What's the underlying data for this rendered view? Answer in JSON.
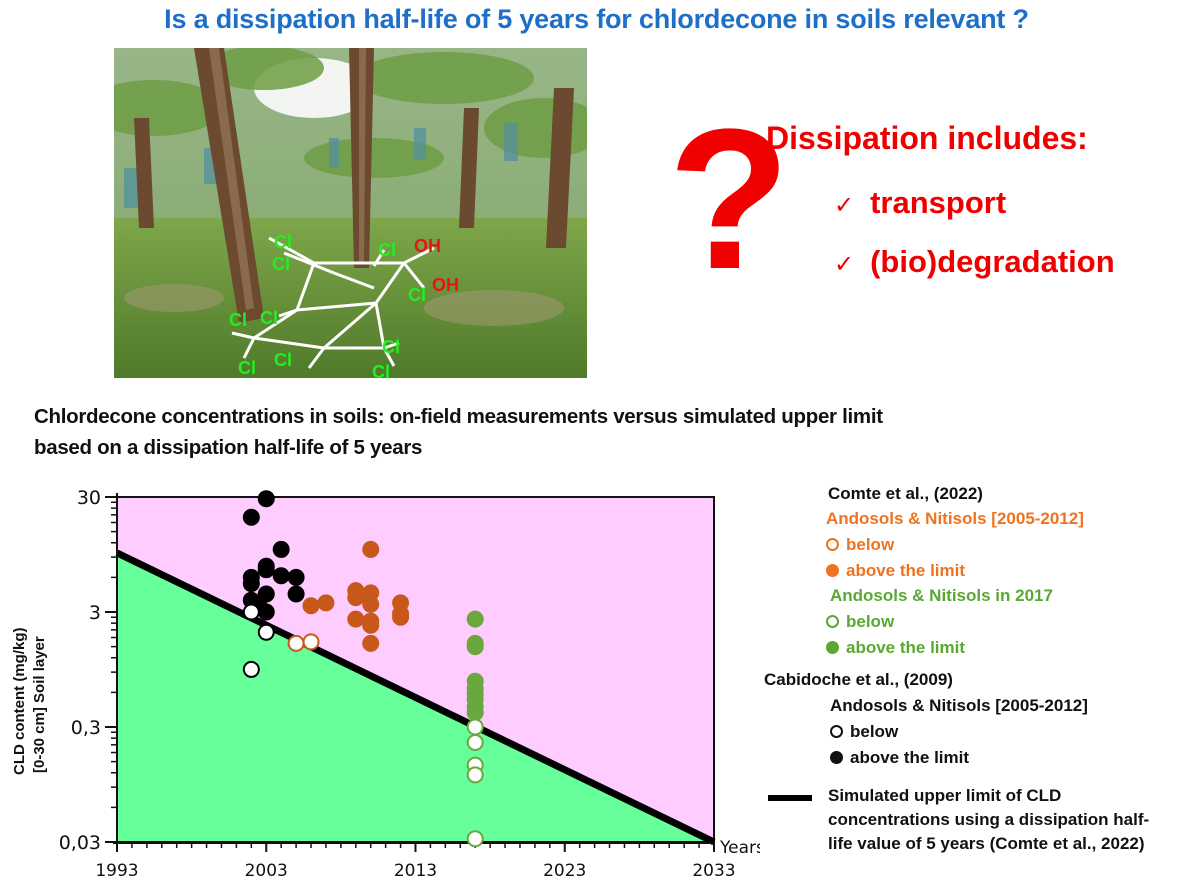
{
  "header": {
    "title": "Is a dissipation half-life of 5 years for chlordecone in soils relevant ?"
  },
  "photo": {
    "description": "Banana plantation with chlordecone molecule overlay",
    "molecule_labels": {
      "chlorine": "Cl",
      "hydroxyl": "OH"
    }
  },
  "question_panel": {
    "symbol": "?",
    "heading": "Dissipation includes:",
    "items": [
      {
        "check": "✓",
        "label": "transport"
      },
      {
        "check": "✓",
        "label": "(bio)degradation"
      }
    ]
  },
  "chart_title": {
    "line1": "Chlordecone concentrations in soils: on-field measurements versus simulated upper limit",
    "line2": "based on a dissipation half-life of 5 years"
  },
  "colors": {
    "title_blue": "#1e6fc8",
    "red": "#ee0000",
    "above_region": "#ffccff",
    "below_region": "#66ff99",
    "orange_points": "#c8581a",
    "green_points": "#6aa73f",
    "black_points": "#000000"
  },
  "legend": {
    "group1_title": "Comte et al., (2022)",
    "group1_sub1": "Andosols & Nitisols [2005-2012]",
    "group1_sub1_below": "below",
    "group1_sub1_above": "above the limit",
    "group1_sub2": "Andosols & Nitisols in 2017",
    "group1_sub2_below": "below",
    "group1_sub2_above": "above the limit",
    "group2_title": "Cabidoche et al., (2009)",
    "group2_sub": "Andosols & Nitisols [2005-2012]",
    "group2_below": "below",
    "group2_above": "above the limit",
    "line_line1": "Simulated upper limit of CLD",
    "line_line2": "concentrations using a dissipation half-",
    "line_line3": "life value of 5 years (Comte et al., 2022)"
  },
  "chart_data": {
    "type": "scatter",
    "title": "Chlordecone concentrations in soils: on-field measurements versus simulated upper limit based on a dissipation half-life of 5 years",
    "xlabel": "Years",
    "ylabel": "CLD content (mg/kg) [0-30 cm] Soil layer",
    "ylabel_line1": "CLD content (mg/kg)",
    "ylabel_line2": "[0-30 cm] Soil layer",
    "yscale": "log",
    "xlim": [
      1993,
      2033
    ],
    "ylim": [
      0.03,
      30
    ],
    "x_ticks": [
      "1993",
      "2003",
      "2013",
      "2023",
      "2033"
    ],
    "y_ticks": [
      "0,03",
      "0,3",
      "3",
      "30"
    ],
    "grid": false,
    "regions": [
      {
        "name": "above the limit",
        "color": "#ffccff"
      },
      {
        "name": "below the limit",
        "color": "#66ff99"
      }
    ],
    "line": {
      "name": "Simulated upper limit of CLD concentrations using a dissipation half-life value of 5 years (Comte et al., 2022)",
      "x": [
        1993,
        2033
      ],
      "y": [
        9.8,
        0.03
      ]
    },
    "series": [
      {
        "name": "Cabidoche et al., (2009) - Andosols & Nitisols [2005-2012] - above the limit",
        "marker": "filled-black",
        "points": [
          [
            2002.0,
            20
          ],
          [
            2003.0,
            29
          ],
          [
            2004.0,
            10.5
          ],
          [
            2003.0,
            7.5
          ],
          [
            2003.0,
            7.0
          ],
          [
            2004.0,
            6.2
          ],
          [
            2005.0,
            6.0
          ],
          [
            2002.0,
            6.0
          ],
          [
            2002.0,
            5.3
          ],
          [
            2005.0,
            4.3
          ],
          [
            2002.0,
            3.8
          ],
          [
            2003.0,
            4.3
          ],
          [
            2003.0,
            3.0
          ],
          [
            2002.5,
            3.4
          ]
        ]
      },
      {
        "name": "Cabidoche et al., (2009) - Andosols & Nitisols [2005-2012] - below",
        "marker": "open-black",
        "points": [
          [
            2002.0,
            3.0
          ],
          [
            2003.0,
            2.0
          ],
          [
            2002.0,
            0.95
          ]
        ]
      },
      {
        "name": "Comte et al., (2022) - Andosols & Nitisols [2005-2012] - above the limit",
        "marker": "filled-orange",
        "points": [
          [
            2006.0,
            3.4
          ],
          [
            2007.0,
            3.6
          ],
          [
            2009.0,
            4.6
          ],
          [
            2010.0,
            4.4
          ],
          [
            2009.0,
            4.0
          ],
          [
            2010.0,
            3.5
          ],
          [
            2012.0,
            3.6
          ],
          [
            2012.0,
            2.9
          ],
          [
            2012.0,
            2.7
          ],
          [
            2009.0,
            2.6
          ],
          [
            2010.0,
            2.5
          ],
          [
            2010.0,
            2.3
          ],
          [
            2010.0,
            1.6
          ],
          [
            2010.0,
            10.5
          ]
        ]
      },
      {
        "name": "Comte et al., (2022) - Andosols & Nitisols [2005-2012] - below",
        "marker": "open-orange",
        "points": [
          [
            2005.0,
            1.6
          ],
          [
            2006.0,
            1.65
          ]
        ]
      },
      {
        "name": "Comte et al., (2022) - Andosols & Nitisols in 2017 - above the limit",
        "marker": "filled-green",
        "points": [
          [
            2017.0,
            2.6
          ],
          [
            2017.0,
            1.6
          ],
          [
            2017.0,
            1.5
          ],
          [
            2017.0,
            0.75
          ],
          [
            2017.0,
            0.65
          ],
          [
            2017.0,
            0.58
          ],
          [
            2017.0,
            0.52
          ],
          [
            2017.0,
            0.45
          ],
          [
            2017.0,
            0.4
          ]
        ]
      },
      {
        "name": "Comte et al., (2022) - Andosols & Nitisols in 2017 - below",
        "marker": "open-green",
        "points": [
          [
            2017.0,
            0.3
          ],
          [
            2017.0,
            0.22
          ],
          [
            2017.0,
            0.14
          ],
          [
            2017.0,
            0.115
          ],
          [
            2017.0,
            0.032
          ]
        ]
      }
    ]
  }
}
